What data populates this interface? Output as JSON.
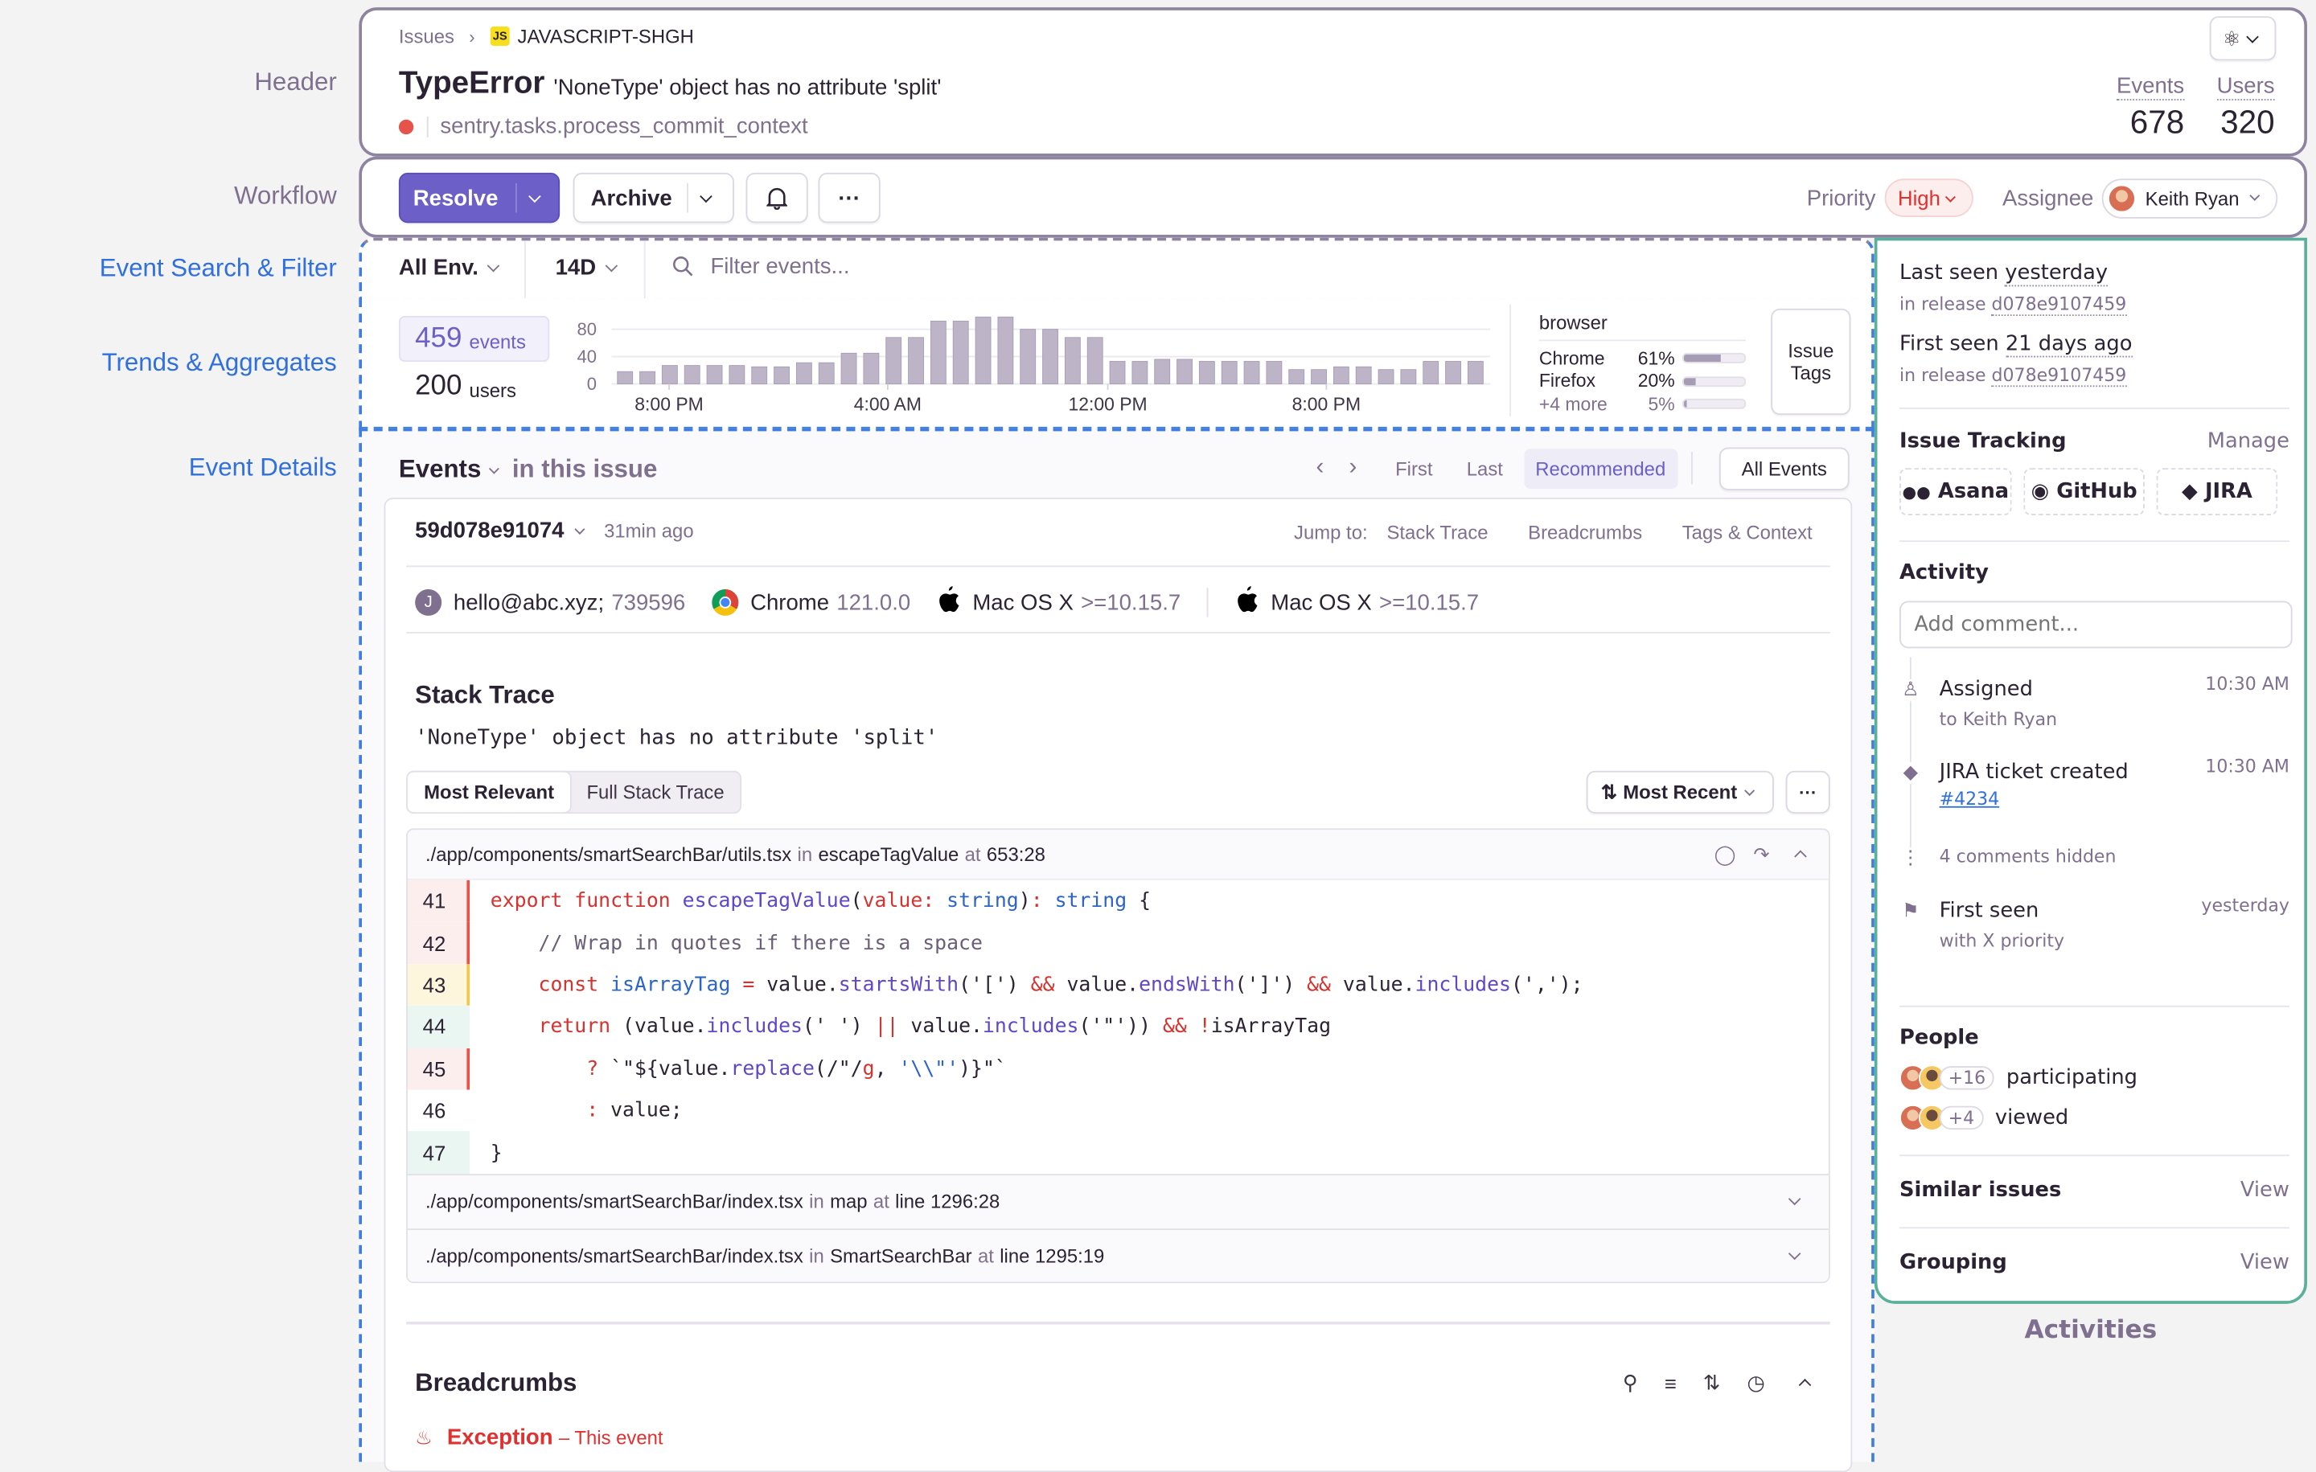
{
  "labels": {
    "header": "Header",
    "workflow": "Workflow",
    "search": "Event Search & Filter",
    "trends": "Trends & Aggregates",
    "details": "Event Details",
    "activities": "Activities"
  },
  "header": {
    "breadcrumb_root": "Issues",
    "platform_badge": "JS",
    "issue_id": "JAVASCRIPT-SHGH",
    "error_type": "TypeError",
    "error_message": "'NoneType' object has no attribute 'split'",
    "culprit": "sentry.tasks.process_commit_context",
    "status_color": "#e5534b",
    "action_icon": "flask-icon",
    "stats": [
      {
        "label": "Events",
        "value": "678"
      },
      {
        "label": "Users",
        "value": "320"
      }
    ]
  },
  "workflow": {
    "resolve": "Resolve",
    "archive": "Archive",
    "priority_label": "Priority",
    "priority": "High",
    "assignee_label": "Assignee",
    "assignee": "Keith Ryan",
    "accent": "#6c5fc7"
  },
  "filter": {
    "environment": "All Env.",
    "period": "14D",
    "search_placeholder": "Filter events..."
  },
  "trends": {
    "events_count": "459",
    "events_label": "events",
    "users_count": "200",
    "users_label": "users",
    "tags_title": "browser",
    "tags": [
      {
        "name": "Chrome",
        "pct": "61%",
        "value": 61
      },
      {
        "name": "Firefox",
        "pct": "20%",
        "value": 20
      },
      {
        "name": "+4 more",
        "pct": "5%",
        "value": 5
      }
    ],
    "issue_tags_button": "Issue Tags"
  },
  "chart_data": {
    "type": "bar",
    "ylim": [
      0,
      100
    ],
    "y_ticks": [
      "80",
      "40",
      "0"
    ],
    "x_ticks": [
      "8:00 PM",
      "4:00 AM",
      "12:00 PM",
      "8:00 PM"
    ],
    "values": [
      18,
      18,
      27,
      27,
      27,
      27,
      25,
      25,
      31,
      31,
      45,
      45,
      68,
      68,
      92,
      92,
      98,
      98,
      80,
      80,
      68,
      68,
      33,
      33,
      36,
      36,
      33,
      33,
      33,
      33,
      21,
      21,
      25,
      25,
      21,
      21,
      33,
      33,
      33
    ],
    "bar_color": "#bdb4c7",
    "grid": true
  },
  "events": {
    "title": "Events",
    "subtitle": "in this issue",
    "nav": {
      "first": "First",
      "last": "Last",
      "recommended": "Recommended",
      "all_events": "All Events"
    },
    "event_id": "59d078e91074",
    "time_ago": "31min ago",
    "jump_to": "Jump to:",
    "jump_links": [
      "Stack Trace",
      "Breadcrumbs",
      "Tags & Context"
    ],
    "context": [
      {
        "icon": "user-avatar-icon",
        "name": "hello@abc.xyz;",
        "version": "739596"
      },
      {
        "icon": "chrome-icon",
        "name": "Chrome",
        "version": "121.0.0"
      },
      {
        "icon": "apple-icon",
        "name": "Mac OS X",
        "version": ">=10.15.7"
      },
      {
        "icon": "apple-icon",
        "name": "Mac OS X",
        "version": ">=10.15.7"
      }
    ],
    "stack_title": "Stack Trace",
    "stack_message": "'NoneType' object has no attribute 'split'",
    "tabs": [
      "Most Relevant",
      "Full Stack Trace"
    ],
    "sort": "Most Recent",
    "frame": {
      "file": "./app/components/smartSearchBar/utils.tsx",
      "in": "in",
      "fn": "escapeTagValue",
      "at": "at",
      "loc": "653:28"
    },
    "code_lines": [
      {
        "n": "41",
        "mark": "red",
        "tokens": [
          [
            "k",
            "export function "
          ],
          [
            "f",
            "escapeTagValue"
          ],
          [
            "p",
            "("
          ],
          [
            "k",
            "value"
          ],
          [
            "k",
            ": "
          ],
          [
            "t",
            "string"
          ],
          [
            "p",
            ")"
          ],
          [
            "k",
            ": "
          ],
          [
            "t",
            "string"
          ],
          [
            "p",
            " {"
          ]
        ]
      },
      {
        "n": "42",
        "mark": "red",
        "tokens": [
          [
            "p",
            "    "
          ],
          [
            "c",
            "// Wrap in quotes if there is a space"
          ]
        ]
      },
      {
        "n": "43",
        "mark": "yellow",
        "tokens": [
          [
            "p",
            "    "
          ],
          [
            "k",
            "const "
          ],
          [
            "t",
            "isArrayTag"
          ],
          [
            "k",
            " = "
          ],
          [
            "p",
            "value."
          ],
          [
            "f",
            "startsWith"
          ],
          [
            "p",
            "('[') "
          ],
          [
            "k",
            "&&"
          ],
          [
            "p",
            " value."
          ],
          [
            "f",
            "endsWith"
          ],
          [
            "p",
            "(']') "
          ],
          [
            "k",
            "&&"
          ],
          [
            "p",
            " value."
          ],
          [
            "f",
            "includes"
          ],
          [
            "p",
            "(',');"
          ]
        ]
      },
      {
        "n": "44",
        "mark": "green",
        "tokens": [
          [
            "p",
            "    "
          ],
          [
            "k",
            "return"
          ],
          [
            "p",
            " (value."
          ],
          [
            "f",
            "includes"
          ],
          [
            "p",
            "(' ') "
          ],
          [
            "k",
            "||"
          ],
          [
            "p",
            " value."
          ],
          [
            "f",
            "includes"
          ],
          [
            "p",
            "('\"')) "
          ],
          [
            "k",
            "&&"
          ],
          [
            "k",
            " !"
          ],
          [
            "p",
            "isArrayTag"
          ]
        ]
      },
      {
        "n": "45",
        "mark": "red",
        "tokens": [
          [
            "p",
            "        "
          ],
          [
            "k",
            "?"
          ],
          [
            "p",
            " `\"${value."
          ],
          [
            "f",
            "replace"
          ],
          [
            "p",
            "(/\"/"
          ],
          [
            "k",
            "g"
          ],
          [
            "p",
            ", "
          ],
          [
            "t",
            "'\\\\\"'"
          ],
          [
            "p",
            ")}\"`"
          ]
        ]
      },
      {
        "n": "46",
        "mark": "none",
        "tokens": [
          [
            "p",
            "        "
          ],
          [
            "k",
            ":"
          ],
          [
            "p",
            " value;"
          ]
        ]
      },
      {
        "n": "47",
        "mark": "green",
        "tokens": [
          [
            "p",
            "}"
          ]
        ]
      }
    ],
    "other_frames": [
      {
        "file": "./app/components/smartSearchBar/index.tsx",
        "in": "in",
        "fn": "map",
        "at": "at",
        "loc": "line 1296:28"
      },
      {
        "file": "./app/components/smartSearchBar/index.tsx",
        "in": "in",
        "fn": "SmartSearchBar",
        "at": "at",
        "loc": "line 1295:19"
      }
    ],
    "breadcrumbs_title": "Breadcrumbs",
    "exception_label": "Exception",
    "exception_note": "– This event"
  },
  "sidebar": {
    "last_seen_label": "Last seen",
    "last_seen": "yesterday",
    "first_seen_label": "First seen",
    "first_seen": "21 days ago",
    "release_prefix": "in release",
    "release": "d078e9107459",
    "issue_tracking": "Issue Tracking",
    "manage": "Manage",
    "trackers": [
      "Asana",
      "GitHub",
      "JIRA"
    ],
    "activity_title": "Activity",
    "comment_placeholder": "Add comment...",
    "activity": [
      {
        "icon": "user-icon",
        "title": "Assigned",
        "sub": "to Keith Ryan",
        "time": "10:30 AM"
      },
      {
        "icon": "jira-icon",
        "title": "JIRA ticket created",
        "link": "#4234",
        "time": "10:30 AM"
      },
      {
        "icon": "ellipsis-vertical-icon",
        "hidden": "4 comments hidden"
      },
      {
        "icon": "flag-icon",
        "title": "First seen",
        "sub": "with X priority",
        "time": "yesterday"
      }
    ],
    "people_title": "People",
    "participating_count": "+16",
    "participating": "participating",
    "viewed_count": "+4",
    "viewed": "viewed",
    "similar": "Similar issues",
    "grouping": "Grouping",
    "view": "View"
  }
}
